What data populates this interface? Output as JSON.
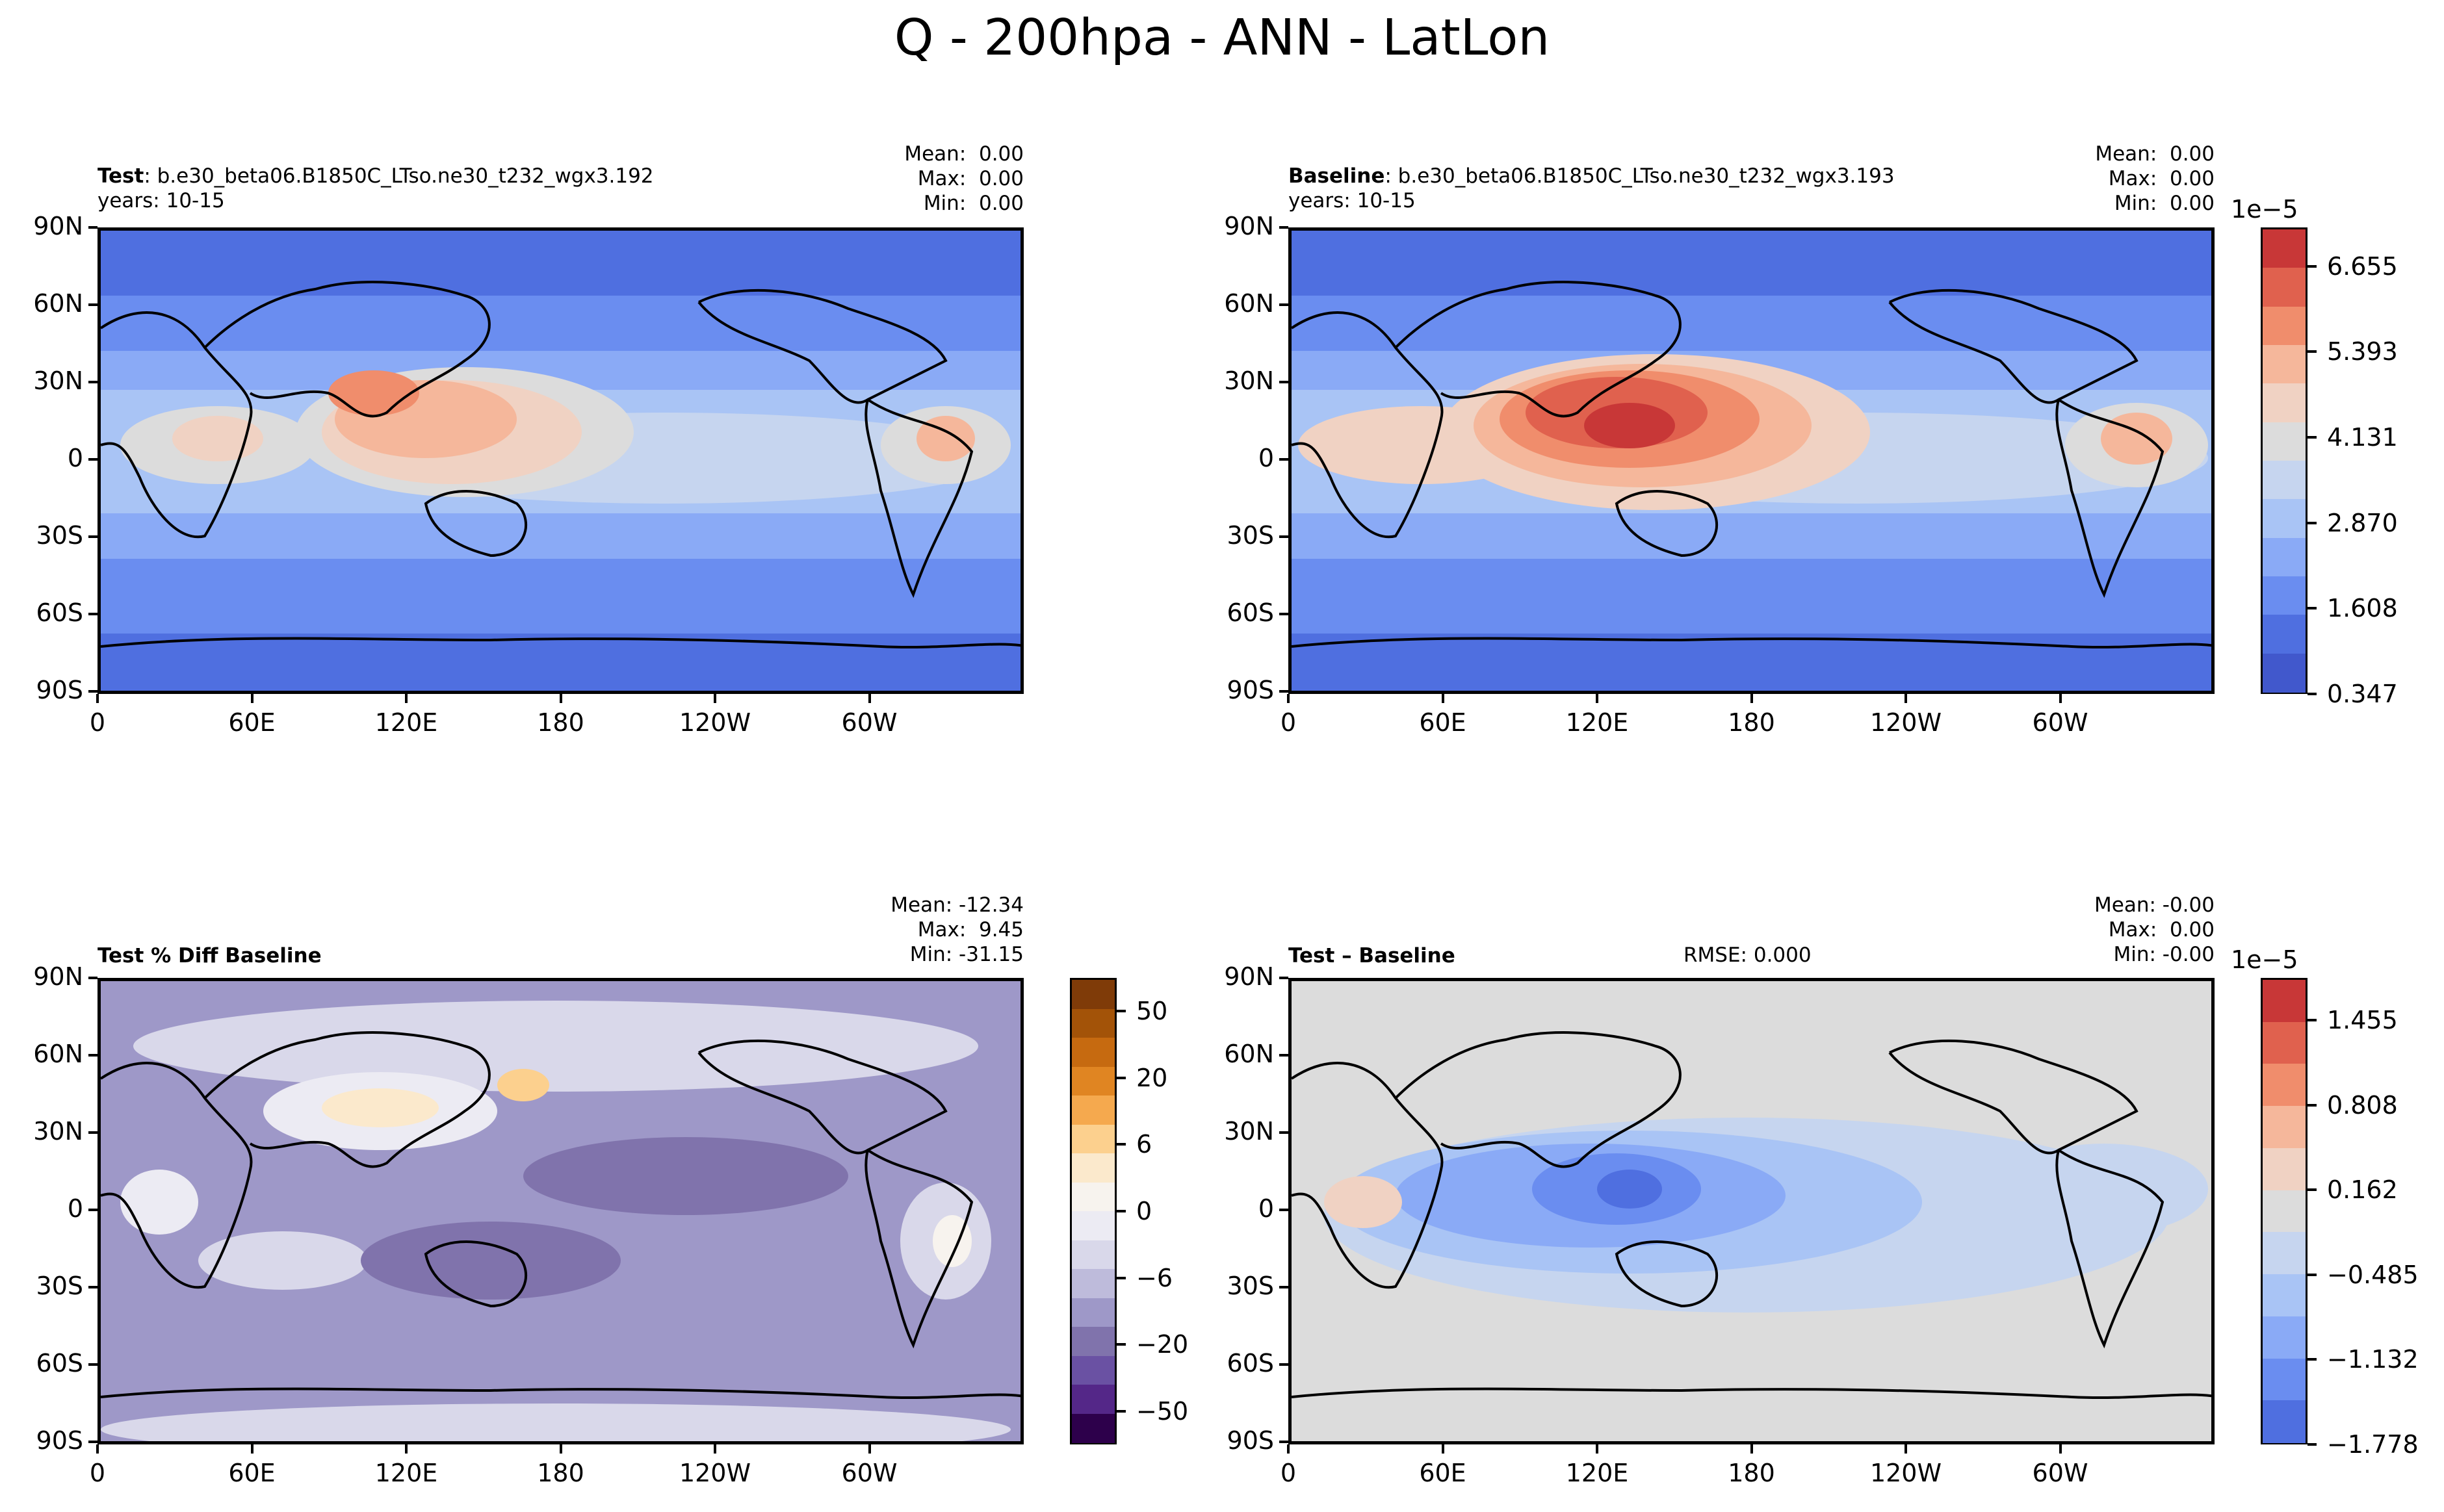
{
  "figure_title": "Q - 200hpa - ANN - LatLon",
  "panels": {
    "test": {
      "label": "Test",
      "case": ": b.e30_beta06.B1850C_LTso.ne30_t232_wgx3.192",
      "years": "years: 10-15",
      "mean": "Mean:  0.00",
      "max": "Max:  0.00",
      "min": "Min:  0.00"
    },
    "baseline": {
      "label": "Baseline",
      "case": ": b.e30_beta06.B1850C_LTso.ne30_t232_wgx3.193",
      "years": "years: 10-15",
      "mean": "Mean:  0.00",
      "max": "Max:  0.00",
      "min": "Min:  0.00"
    },
    "pctdiff": {
      "label": "Test % Diff Baseline",
      "mean": "Mean: -12.34",
      "max": "Max:  9.45",
      "min": "Min: -31.15"
    },
    "diff": {
      "label": "Test – Baseline",
      "rmse": "RMSE: 0.000",
      "mean": "Mean: -0.00",
      "max": "Max:  0.00",
      "min": "Min: -0.00"
    }
  },
  "axes": {
    "lat_ticks": [
      "90N",
      "60N",
      "30N",
      "0",
      "30S",
      "60S",
      "90S"
    ],
    "lon_ticks": [
      "0",
      "60E",
      "120E",
      "180",
      "120W",
      "60W"
    ]
  },
  "colorbars": {
    "main": {
      "exponent": "1e−5",
      "labels": [
        "6.655",
        "5.393",
        "4.131",
        "2.870",
        "1.608",
        "0.347"
      ],
      "colors": [
        "#c83737",
        "#e0614e",
        "#f08d6c",
        "#f5b79b",
        "#f0d2c3",
        "#dcdcdc",
        "#c6d5ef",
        "#a9c4f5",
        "#8aaaf6",
        "#6a8df0",
        "#4f6fe0",
        "#4158cc"
      ]
    },
    "pct": {
      "labels": [
        "50",
        "20",
        "6",
        "0",
        "−6",
        "−20",
        "−50"
      ],
      "colors": [
        "#7f3b08",
        "#a35308",
        "#c66a10",
        "#e08522",
        "#f5a94e",
        "#fcd08e",
        "#fbe9cc",
        "#f7f3ee",
        "#ecebf3",
        "#d9d8ea",
        "#bebbdb",
        "#9e98c8",
        "#8073ac",
        "#6a51a3",
        "#542788",
        "#2d004b"
      ]
    },
    "diff": {
      "exponent": "1e−5",
      "labels": [
        "1.455",
        "0.808",
        "0.162",
        "−0.485",
        "−1.132",
        "−1.778"
      ],
      "colors": [
        "#c83737",
        "#e0614e",
        "#f08d6c",
        "#f5b79b",
        "#f0d2c3",
        "#dcdcdc",
        "#c6d5ef",
        "#a9c4f5",
        "#8aaaf6",
        "#6a8df0",
        "#4f6fe0"
      ]
    }
  },
  "chart_data": [
    {
      "type": "heatmap",
      "title": "Test : b.e30_beta06.B1850C_LTso.ne30_t232_wgx3.192",
      "xlabel": "",
      "ylabel": "",
      "x_ticks": [
        "0",
        "60E",
        "120E",
        "180",
        "120W",
        "60W"
      ],
      "y_ticks": [
        "90N",
        "60N",
        "30N",
        "0",
        "30S",
        "60S",
        "90S"
      ],
      "colorbar_range": [
        3.47e-06,
        7.286e-05
      ],
      "colorbar_ticks": [
        0.347,
        1.608,
        2.87,
        4.131,
        5.393,
        6.655
      ],
      "colorbar_exponent": "1e-5",
      "stats": {
        "mean": 0.0,
        "max": 0.0,
        "min": 0.0
      }
    },
    {
      "type": "heatmap",
      "title": "Baseline : b.e30_beta06.B1850C_LTso.ne30_t232_wgx3.193",
      "x_ticks": [
        "0",
        "60E",
        "120E",
        "180",
        "120W",
        "60W"
      ],
      "y_ticks": [
        "90N",
        "60N",
        "30N",
        "0",
        "30S",
        "60S",
        "90S"
      ],
      "colorbar_range": [
        3.47e-06,
        7.286e-05
      ],
      "colorbar_ticks": [
        0.347,
        1.608,
        2.87,
        4.131,
        5.393,
        6.655
      ],
      "colorbar_exponent": "1e-5",
      "stats": {
        "mean": 0.0,
        "max": 0.0,
        "min": 0.0
      }
    },
    {
      "type": "heatmap",
      "title": "Test % Diff Baseline",
      "x_ticks": [
        "0",
        "60E",
        "120E",
        "180",
        "120W",
        "60W"
      ],
      "y_ticks": [
        "90N",
        "60N",
        "30N",
        "0",
        "30S",
        "60S",
        "90S"
      ],
      "colorbar_ticks": [
        50,
        20,
        6,
        0,
        -6,
        -20,
        -50
      ],
      "stats": {
        "mean": -12.34,
        "max": 9.45,
        "min": -31.15
      }
    },
    {
      "type": "heatmap",
      "title": "Test − Baseline",
      "x_ticks": [
        "0",
        "60E",
        "120E",
        "180",
        "120W",
        "60W"
      ],
      "y_ticks": [
        "90N",
        "60N",
        "30N",
        "0",
        "30S",
        "60S",
        "90S"
      ],
      "colorbar_range": [
        -1.778e-05,
        1.778e-05
      ],
      "colorbar_ticks": [
        1.455,
        0.808,
        0.162,
        -0.485,
        -1.132,
        -1.778
      ],
      "colorbar_exponent": "1e-5",
      "stats": {
        "mean": -0.0,
        "max": 0.0,
        "min": -0.0,
        "rmse": 0.0
      }
    }
  ]
}
